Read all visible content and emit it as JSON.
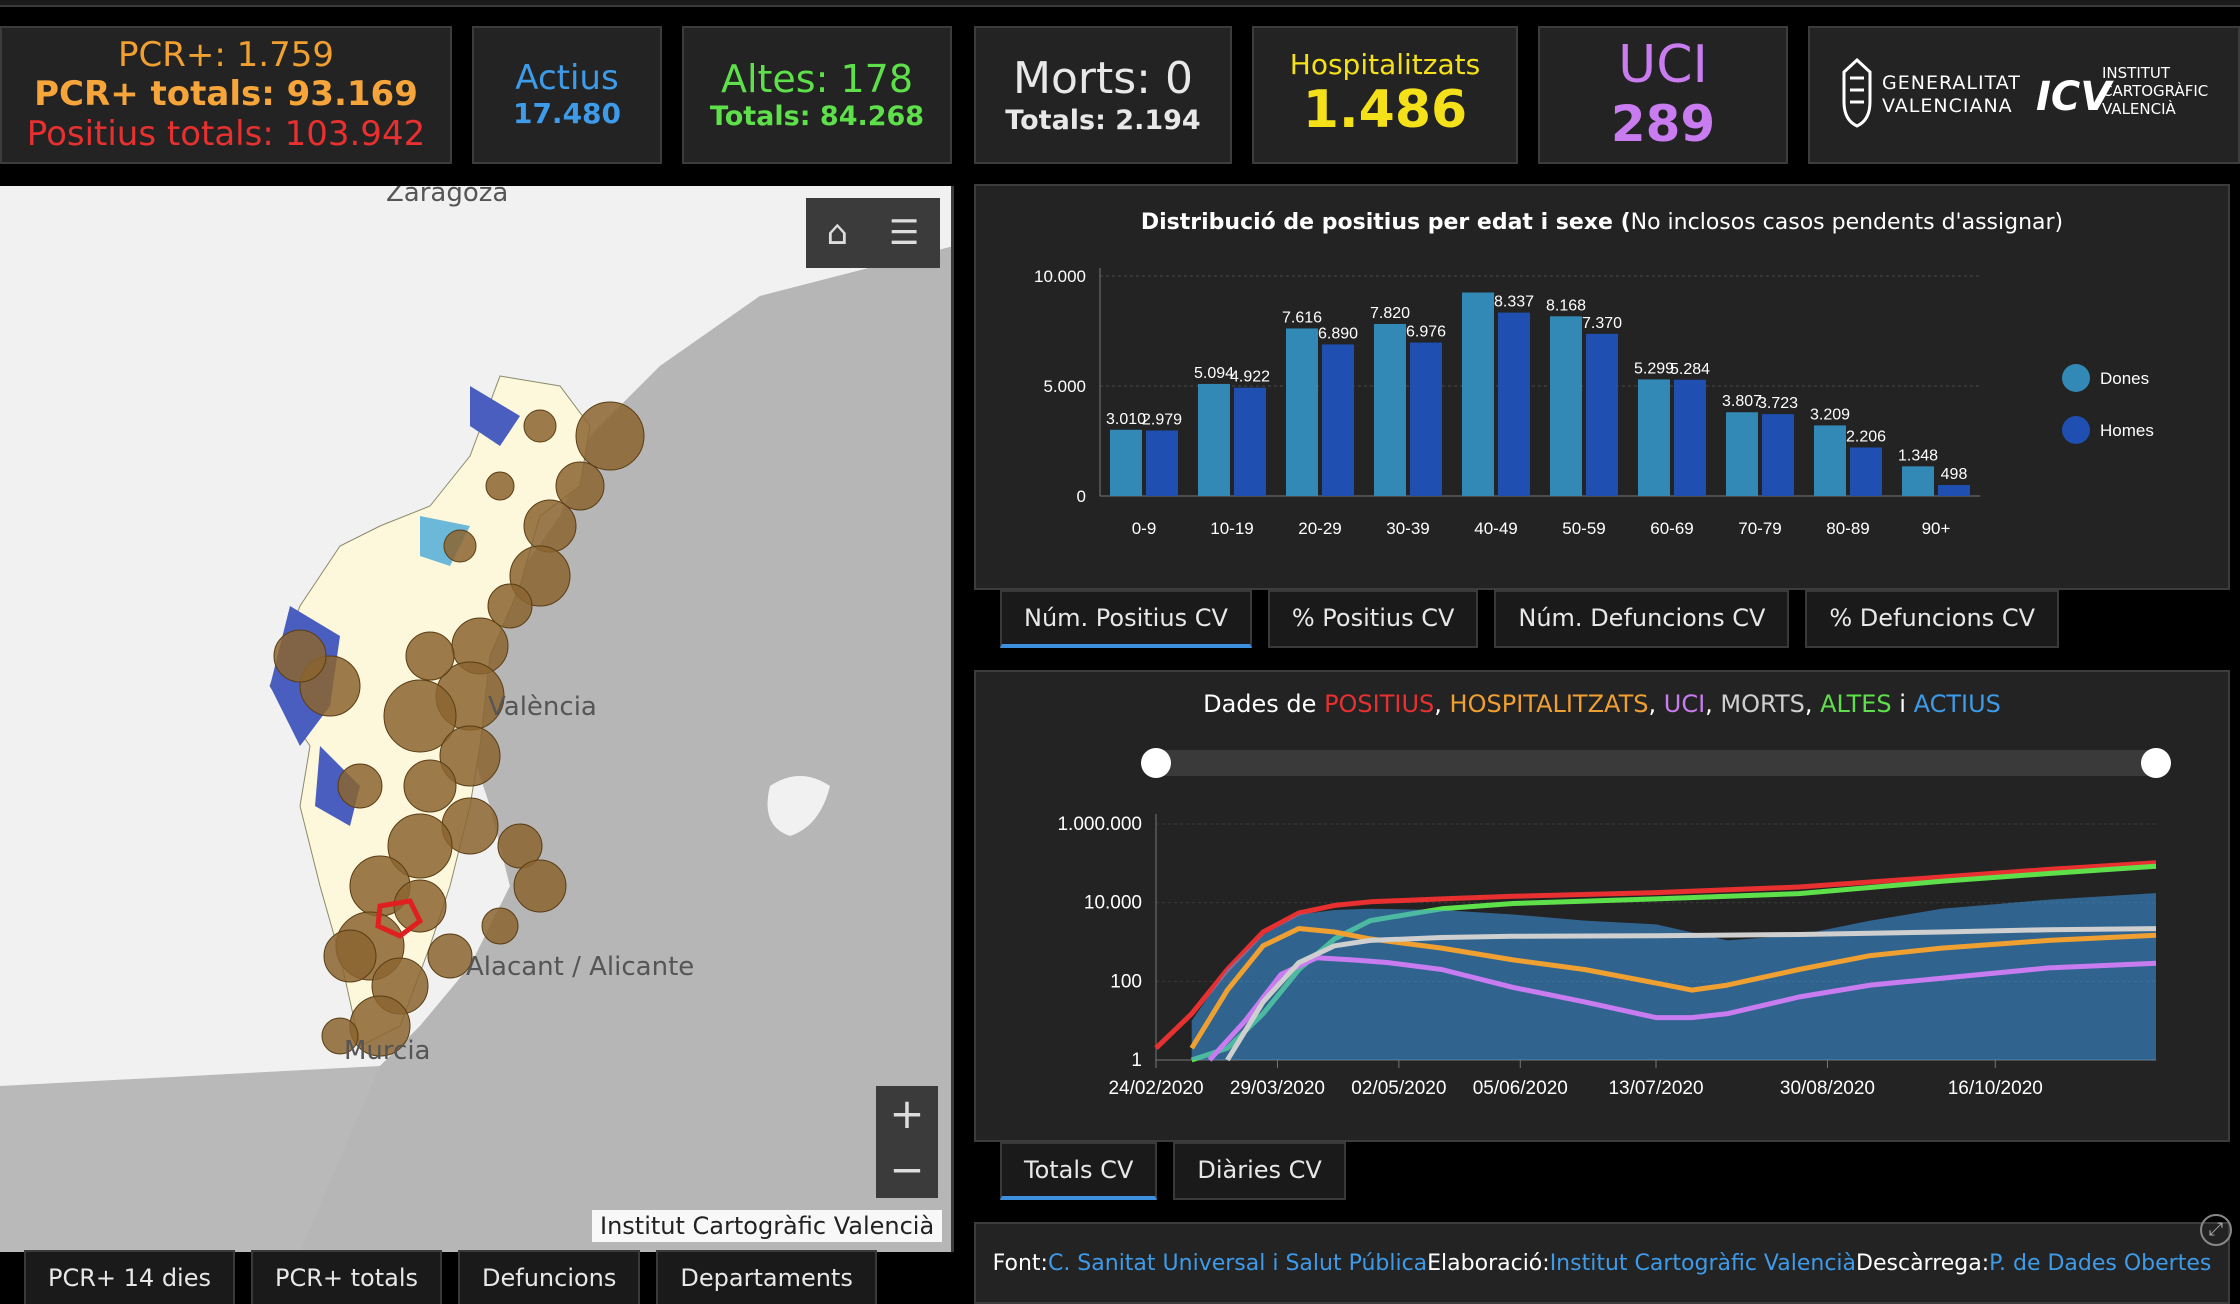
{
  "stats": {
    "pcr": {
      "line1": "PCR+: 1.759",
      "line2": "PCR+ totals: 93.169",
      "line3": "Positius totals: 103.942"
    },
    "actius": {
      "label": "Actius",
      "value": "17.480"
    },
    "altes": {
      "label": "Altes: 178",
      "totals": "Totals: 84.268"
    },
    "morts": {
      "label": "Morts: 0",
      "totals": "Totals: 2.194"
    },
    "hosp": {
      "label": "Hospitalitzats",
      "value": "1.486"
    },
    "uci": {
      "label": "UCI",
      "value": "289"
    },
    "logos": {
      "gv_line1": "GENERALITAT",
      "gv_line2": "VALENCIANA",
      "icv_line1": "INSTITUT",
      "icv_line2": "CARTOGRÀFIC",
      "icv_line3": "VALENCIÀ"
    }
  },
  "map": {
    "labels": {
      "zaragoza": "Zaragoza",
      "valencia": "València",
      "alacant": "Alacant / Alicante",
      "murcia": "Murcia"
    },
    "home_icon": "home-icon",
    "legend_icon": "list-icon",
    "zoom_in": "+",
    "zoom_out": "−",
    "attribution": "Institut Cartogràfic Valencià",
    "tabs": [
      "PCR+ 14 dies",
      "PCR+ totals",
      "Defuncions",
      "Departaments"
    ]
  },
  "age_chart": {
    "title_bold": "Distribució de positius per edat i sexe (",
    "title_normal": "No inclosos casos pendents d'assignar)",
    "tabs": [
      "Núm. Positius CV",
      "% Positius CV",
      "Núm. Defuncions CV",
      "% Defuncions CV"
    ]
  },
  "time_chart": {
    "title": {
      "pre": "Dades de ",
      "positius": "POSITIUS",
      "sep1": ", ",
      "hosp": "HOSPITALITZATS",
      "sep2": ", ",
      "uci": "UCI",
      "sep3": ", ",
      "morts": "MORTS",
      "sep4": ", ",
      "altes": "ALTES",
      "sep5": " i ",
      "actius": "ACTIUS"
    },
    "tabs": [
      "Totals CV",
      "Diàries CV"
    ]
  },
  "footer": {
    "font_label": "Font: ",
    "font_link": "C. Sanitat Universal i Salut Pública",
    "elab_label": " Elaboració: ",
    "elab_link": "Institut Cartogràfic Valencià",
    "desc_label": " Descàrrega: ",
    "desc_link": "P. de Dades Obertes"
  },
  "colors": {
    "pcr": "#f0a030",
    "pcr_total": "#f5a53a",
    "positius": "#e83030",
    "actius": "#3d9be9",
    "altes": "#5ee04a",
    "hosp": "#f4e11a",
    "uci": "#c97cf0",
    "dones": "#3389b5",
    "homes": "#1f4fb0"
  },
  "chart_data": [
    {
      "type": "bar",
      "categories": [
        "0-9",
        "10-19",
        "20-29",
        "30-39",
        "40-49",
        "50-59",
        "60-69",
        "70-79",
        "80-89",
        "90+"
      ],
      "series": [
        {
          "name": "Dones",
          "values": [
            3010,
            5094,
            7616,
            7820,
            9250,
            8168,
            5299,
            3807,
            3209,
            1348
          ],
          "labels": [
            "3.010",
            "5.094",
            "7.616",
            "7.820",
            "",
            "8.168",
            "5.299",
            "3.807",
            "3.209",
            "1.348"
          ]
        },
        {
          "name": "Homes",
          "values": [
            2979,
            4922,
            6890,
            6976,
            8337,
            7370,
            5284,
            3723,
            2206,
            498
          ],
          "labels": [
            "2.979",
            "4.922",
            "6.890",
            "6.976",
            "8.337",
            "7.370",
            "5.284",
            "3.723",
            "2.206",
            "498"
          ]
        }
      ],
      "yticks": [
        "0",
        "5.000",
        "10.000"
      ],
      "ylim": [
        0,
        10000
      ],
      "legend": "right"
    },
    {
      "type": "line",
      "scale": "log",
      "xticks": [
        "24/02/2020",
        "29/03/2020",
        "02/05/2020",
        "05/06/2020",
        "13/07/2020",
        "30/08/2020",
        "16/10/2020"
      ],
      "yticks": [
        "1",
        "100",
        "10.000",
        "1.000.000"
      ],
      "ylim": [
        1,
        1000000
      ],
      "series": [
        {
          "name": "POSITIUS",
          "color": "#e83030",
          "x": [
            0,
            10,
            20,
            30,
            40,
            50,
            60,
            80,
            100,
            140,
            180,
            220,
            250,
            280
          ],
          "y": [
            2,
            15,
            200,
            1800,
            5500,
            8500,
            10500,
            12500,
            14500,
            18000,
            25000,
            45000,
            70000,
            103942
          ]
        },
        {
          "name": "ALTES",
          "color": "#5ee04a",
          "x": [
            10,
            20,
            30,
            40,
            50,
            60,
            80,
            100,
            140,
            180,
            220,
            250,
            280
          ],
          "y": [
            1,
            2,
            15,
            200,
            1200,
            3500,
            7000,
            9500,
            12500,
            17000,
            35000,
            55000,
            84268
          ]
        },
        {
          "name": "ACTIUS",
          "color": "#3d9be9",
          "x": [
            10,
            20,
            30,
            40,
            50,
            60,
            80,
            100,
            120,
            140,
            160,
            180,
            200,
            220,
            250,
            280
          ],
          "y": [
            10,
            200,
            1500,
            5000,
            6500,
            7000,
            6500,
            5000,
            3500,
            2800,
            1100,
            1500,
            3500,
            7000,
            12000,
            17480
          ]
        },
        {
          "name": "HOSPITALITZATS",
          "color": "#f0a030",
          "x": [
            10,
            20,
            30,
            40,
            50,
            60,
            80,
            100,
            120,
            140,
            150,
            160,
            180,
            200,
            220,
            250,
            280
          ],
          "y": [
            2,
            60,
            800,
            2200,
            1800,
            1200,
            700,
            350,
            200,
            90,
            60,
            80,
            200,
            450,
            700,
            1100,
            1486
          ]
        },
        {
          "name": "UCI",
          "color": "#c97cf0",
          "x": [
            15,
            25,
            35,
            45,
            55,
            65,
            80,
            100,
            120,
            140,
            150,
            160,
            180,
            200,
            220,
            250,
            280
          ],
          "y": [
            1,
            10,
            150,
            400,
            350,
            300,
            200,
            70,
            30,
            12,
            12,
            15,
            40,
            80,
            120,
            220,
            289
          ]
        },
        {
          "name": "MORTS",
          "color": "#cfcfcf",
          "x": [
            20,
            30,
            40,
            50,
            60,
            80,
            100,
            140,
            180,
            220,
            250,
            280
          ],
          "y": [
            1,
            30,
            300,
            800,
            1100,
            1300,
            1400,
            1450,
            1550,
            1800,
            2050,
            2194
          ]
        }
      ]
    }
  ]
}
